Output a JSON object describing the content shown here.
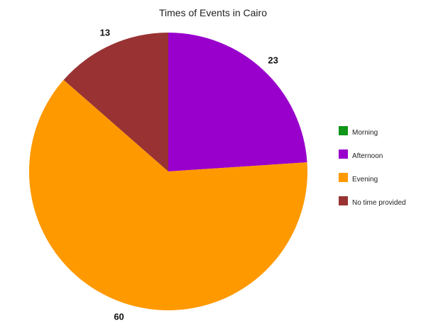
{
  "chart_data": {
    "type": "pie",
    "title": "Times of Events in Cairo",
    "categories": [
      "Morning",
      "Afternoon",
      "Evening",
      "No time provided"
    ],
    "values": [
      0,
      23,
      60,
      13
    ],
    "colors": [
      "#109618",
      "#9900cc",
      "#ff9900",
      "#993333"
    ],
    "legend_position": "right",
    "start_angle": "top",
    "direction": "clockwise"
  }
}
